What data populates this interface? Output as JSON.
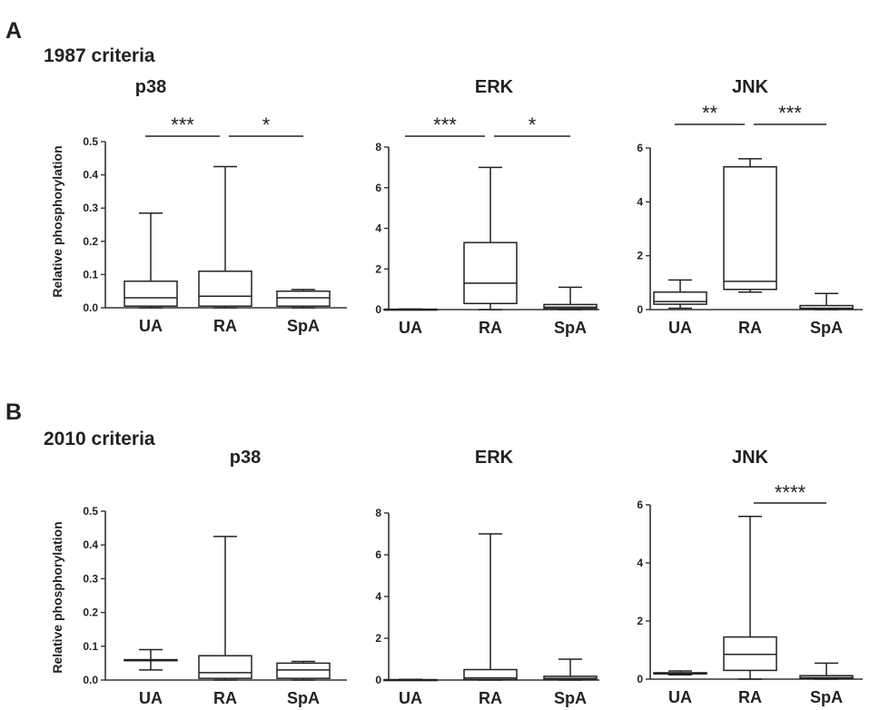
{
  "panels": [
    {
      "letter": "A",
      "criteria": "1987 criteria"
    },
    {
      "letter": "B",
      "criteria": "2010 criteria"
    }
  ],
  "ylabel": "Relative phosphorylation",
  "chart_data": [
    {
      "type": "box",
      "panel": "A",
      "title": "p38",
      "ylabel": "Relative phosphorylation",
      "categories": [
        "UA",
        "RA",
        "SpA"
      ],
      "ylim": [
        0,
        0.5
      ],
      "yticks": [
        "0.0",
        "0.1",
        "0.2",
        "0.3",
        "0.4",
        "0.5"
      ],
      "boxes": [
        {
          "min": 0.0,
          "q1": 0.005,
          "median": 0.03,
          "q3": 0.08,
          "max": 0.285
        },
        {
          "min": 0.0,
          "q1": 0.005,
          "median": 0.035,
          "q3": 0.11,
          "max": 0.425
        },
        {
          "min": 0.0,
          "q1": 0.005,
          "median": 0.03,
          "q3": 0.05,
          "max": 0.055
        }
      ],
      "significance": [
        {
          "from": "UA",
          "to": "RA",
          "label": "***"
        },
        {
          "from": "RA",
          "to": "SpA",
          "label": "*"
        }
      ]
    },
    {
      "type": "box",
      "panel": "A",
      "title": "ERK",
      "categories": [
        "UA",
        "RA",
        "SpA"
      ],
      "ylim": [
        0,
        8
      ],
      "yticks": [
        "0",
        "2",
        "4",
        "6",
        "8"
      ],
      "boxes": [
        {
          "min": 0.0,
          "q1": 0.0,
          "median": 0.0,
          "q3": 0.02,
          "max": 0.03
        },
        {
          "min": 0.0,
          "q1": 0.3,
          "median": 1.3,
          "q3": 3.3,
          "max": 7.0
        },
        {
          "min": 0.0,
          "q1": 0.05,
          "median": 0.12,
          "q3": 0.25,
          "max": 1.1
        }
      ],
      "significance": [
        {
          "from": "UA",
          "to": "RA",
          "label": "***"
        },
        {
          "from": "RA",
          "to": "SpA",
          "label": "*"
        }
      ]
    },
    {
      "type": "box",
      "panel": "A",
      "title": "JNK",
      "categories": [
        "UA",
        "RA",
        "SpA"
      ],
      "ylim": [
        0,
        6
      ],
      "yticks": [
        "0",
        "2",
        "4",
        "6"
      ],
      "boxes": [
        {
          "min": 0.05,
          "q1": 0.2,
          "median": 0.3,
          "q3": 0.65,
          "max": 1.1
        },
        {
          "min": 0.65,
          "q1": 0.75,
          "median": 1.05,
          "q3": 5.3,
          "max": 5.6
        },
        {
          "min": 0.0,
          "q1": 0.02,
          "median": 0.05,
          "q3": 0.15,
          "max": 0.6
        }
      ],
      "significance": [
        {
          "from": "UA",
          "to": "RA",
          "label": "**"
        },
        {
          "from": "RA",
          "to": "SpA",
          "label": "***"
        }
      ]
    },
    {
      "type": "box",
      "panel": "B",
      "title": "p38",
      "ylabel": "Relative phosphorylation",
      "categories": [
        "UA",
        "RA",
        "SpA"
      ],
      "ylim": [
        0,
        0.5
      ],
      "yticks": [
        "0.0",
        "0.1",
        "0.2",
        "0.3",
        "0.4",
        "0.5"
      ],
      "boxes": [
        {
          "min": 0.03,
          "q1": 0.06,
          "median": 0.06,
          "q3": 0.06,
          "max": 0.09
        },
        {
          "min": 0.0,
          "q1": 0.005,
          "median": 0.022,
          "q3": 0.072,
          "max": 0.425
        },
        {
          "min": 0.0,
          "q1": 0.005,
          "median": 0.03,
          "q3": 0.05,
          "max": 0.055
        }
      ],
      "significance": []
    },
    {
      "type": "box",
      "panel": "B",
      "title": "ERK",
      "categories": [
        "UA",
        "RA",
        "SpA"
      ],
      "ylim": [
        0,
        8
      ],
      "yticks": [
        "0",
        "2",
        "4",
        "6",
        "8"
      ],
      "boxes": [
        {
          "min": 0.0,
          "q1": 0.0,
          "median": 0.0,
          "q3": 0.02,
          "max": 0.03
        },
        {
          "min": 0.0,
          "q1": 0.02,
          "median": 0.1,
          "q3": 0.5,
          "max": 7.0
        },
        {
          "min": 0.0,
          "q1": 0.02,
          "median": 0.08,
          "q3": 0.18,
          "max": 1.0
        }
      ],
      "significance": []
    },
    {
      "type": "box",
      "panel": "B",
      "title": "JNK",
      "categories": [
        "UA",
        "RA",
        "SpA"
      ],
      "ylim": [
        0,
        6
      ],
      "yticks": [
        "0",
        "2",
        "4",
        "6"
      ],
      "boxes": [
        {
          "min": 0.15,
          "q1": 0.18,
          "median": 0.2,
          "q3": 0.22,
          "max": 0.28
        },
        {
          "min": 0.0,
          "q1": 0.3,
          "median": 0.85,
          "q3": 1.45,
          "max": 5.6
        },
        {
          "min": 0.0,
          "q1": 0.02,
          "median": 0.05,
          "q3": 0.12,
          "max": 0.55
        }
      ],
      "significance": [
        {
          "from": "RA",
          "to": "SpA",
          "label": "****"
        }
      ]
    }
  ]
}
